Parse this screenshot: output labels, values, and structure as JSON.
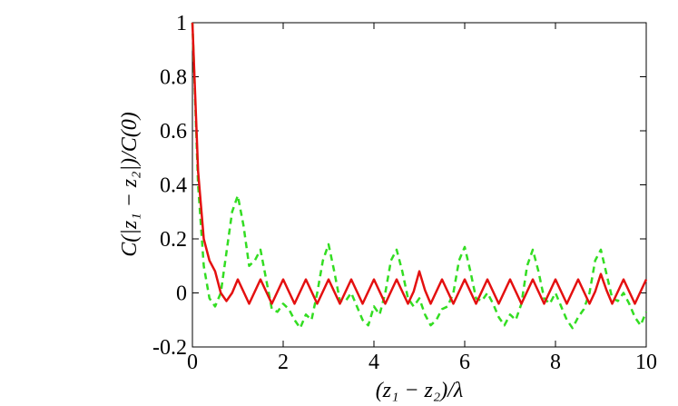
{
  "chart_data": {
    "type": "line",
    "xlabel": "(z₁ − z₂)/λ",
    "ylabel": "C(|z₁ − z₂|)/C(0)",
    "x": [
      0,
      0.125,
      0.25,
      0.375,
      0.5,
      0.625,
      0.75,
      0.875,
      1,
      1.125,
      1.25,
      1.375,
      1.5,
      1.625,
      1.75,
      1.875,
      2,
      2.125,
      2.25,
      2.375,
      2.5,
      2.625,
      2.75,
      2.875,
      3,
      3.125,
      3.25,
      3.375,
      3.5,
      3.625,
      3.75,
      3.875,
      4,
      4.125,
      4.25,
      4.375,
      4.5,
      4.625,
      4.75,
      4.875,
      5,
      5.125,
      5.25,
      5.375,
      5.5,
      5.625,
      5.75,
      5.875,
      6,
      6.125,
      6.25,
      6.375,
      6.5,
      6.625,
      6.75,
      6.875,
      7,
      7.125,
      7.25,
      7.375,
      7.5,
      7.625,
      7.75,
      7.875,
      8,
      8.125,
      8.25,
      8.375,
      8.5,
      8.625,
      8.75,
      8.875,
      9,
      9.125,
      9.25,
      9.375,
      9.5,
      9.625,
      9.75,
      9.875,
      10
    ],
    "series": [
      {
        "color": "#e41010",
        "dash": "none",
        "values": [
          1,
          0.45,
          0.2,
          0.12,
          0.08,
          0.0,
          -0.03,
          0.0,
          0.05,
          0.005,
          -0.04,
          0.005,
          0.05,
          0.005,
          -0.04,
          0.005,
          0.05,
          0.005,
          -0.04,
          0.005,
          0.05,
          0.005,
          -0.04,
          0.005,
          0.05,
          0.005,
          -0.04,
          0.005,
          0.05,
          0.005,
          -0.04,
          0.005,
          0.05,
          0.005,
          -0.04,
          0.005,
          0.05,
          0.005,
          -0.04,
          0.005,
          0.08,
          0.01,
          -0.04,
          0.005,
          0.05,
          0.005,
          -0.04,
          0.005,
          0.05,
          0.005,
          -0.04,
          0.005,
          0.05,
          0.005,
          -0.04,
          0.005,
          0.05,
          0.005,
          -0.04,
          0.005,
          0.05,
          0.005,
          -0.04,
          0.005,
          0.05,
          0.005,
          -0.04,
          0.005,
          0.05,
          0.005,
          -0.04,
          0.005,
          0.07,
          0.01,
          -0.04,
          0.005,
          0.05,
          0.005,
          -0.04,
          0.005,
          0.05
        ]
      },
      {
        "color": "#33dd22",
        "dash": "7,5",
        "values": [
          1,
          0.4,
          0.1,
          -0.02,
          -0.05,
          0.0,
          0.15,
          0.3,
          0.36,
          0.25,
          0.1,
          0.12,
          0.16,
          0.05,
          -0.06,
          -0.07,
          -0.04,
          -0.06,
          -0.1,
          -0.13,
          -0.08,
          -0.1,
          0.0,
          0.12,
          0.18,
          0.08,
          -0.03,
          -0.03,
          0.0,
          -0.05,
          -0.1,
          -0.12,
          -0.05,
          -0.08,
          0.0,
          0.12,
          0.16,
          0.08,
          -0.02,
          -0.05,
          -0.02,
          -0.08,
          -0.12,
          -0.1,
          -0.06,
          -0.05,
          0.0,
          0.12,
          0.17,
          0.08,
          -0.02,
          -0.03,
          0.0,
          -0.04,
          -0.09,
          -0.12,
          -0.08,
          -0.1,
          -0.04,
          0.1,
          0.16,
          0.08,
          -0.02,
          -0.04,
          0.0,
          -0.05,
          -0.1,
          -0.13,
          -0.09,
          -0.06,
          0.0,
          0.12,
          0.16,
          0.07,
          -0.02,
          -0.03,
          0.0,
          -0.04,
          -0.09,
          -0.12,
          -0.07
        ]
      }
    ],
    "xlim": [
      0,
      10
    ],
    "xticks": [
      0,
      2,
      4,
      6,
      8,
      10
    ],
    "ylim": [
      -0.2,
      1
    ],
    "yticks": [
      -0.2,
      0,
      0.2,
      0.4,
      0.6,
      0.8,
      1
    ]
  }
}
